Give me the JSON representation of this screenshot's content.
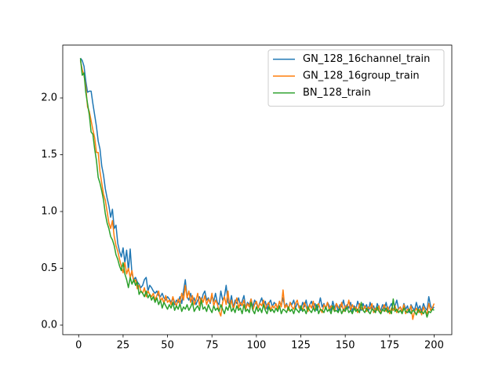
{
  "chart_data": {
    "type": "line",
    "x": [
      1,
      2,
      3,
      4,
      5,
      6,
      7,
      8,
      9,
      10,
      11,
      12,
      13,
      14,
      15,
      16,
      17,
      18,
      19,
      20,
      21,
      22,
      23,
      24,
      25,
      26,
      27,
      28,
      29,
      30,
      31,
      32,
      33,
      34,
      35,
      36,
      37,
      38,
      39,
      40,
      41,
      42,
      43,
      44,
      45,
      46,
      47,
      48,
      49,
      50,
      51,
      52,
      53,
      54,
      55,
      56,
      57,
      58,
      59,
      60,
      61,
      62,
      63,
      64,
      65,
      66,
      67,
      68,
      69,
      70,
      71,
      72,
      73,
      74,
      75,
      76,
      77,
      78,
      79,
      80,
      81,
      82,
      83,
      84,
      85,
      86,
      87,
      88,
      89,
      90,
      91,
      92,
      93,
      94,
      95,
      96,
      97,
      98,
      99,
      100,
      101,
      102,
      103,
      104,
      105,
      106,
      107,
      108,
      109,
      110,
      111,
      112,
      113,
      114,
      115,
      116,
      117,
      118,
      119,
      120,
      121,
      122,
      123,
      124,
      125,
      126,
      127,
      128,
      129,
      130,
      131,
      132,
      133,
      134,
      135,
      136,
      137,
      138,
      139,
      140,
      141,
      142,
      143,
      144,
      145,
      146,
      147,
      148,
      149,
      150,
      151,
      152,
      153,
      154,
      155,
      156,
      157,
      158,
      159,
      160,
      161,
      162,
      163,
      164,
      165,
      166,
      167,
      168,
      169,
      170,
      171,
      172,
      173,
      174,
      175,
      176,
      177,
      178,
      179,
      180,
      181,
      182,
      183,
      184,
      185,
      186,
      187,
      188,
      189,
      190,
      191,
      192,
      193,
      194,
      195,
      196,
      197,
      198,
      199,
      200
    ],
    "series": [
      {
        "name": "GN_128_16channel_train",
        "color": "#1f77b4",
        "values": [
          2.35,
          2.33,
          2.28,
          2.15,
          2.05,
          2.06,
          2.06,
          1.95,
          1.85,
          1.75,
          1.62,
          1.55,
          1.4,
          1.32,
          1.2,
          1.12,
          1.05,
          0.95,
          1.02,
          0.85,
          0.88,
          0.72,
          0.65,
          0.6,
          0.68,
          0.55,
          0.66,
          0.48,
          0.67,
          0.45,
          0.4,
          0.42,
          0.38,
          0.36,
          0.33,
          0.35,
          0.4,
          0.42,
          0.3,
          0.35,
          0.33,
          0.3,
          0.28,
          0.3,
          0.26,
          0.25,
          0.28,
          0.24,
          0.22,
          0.25,
          0.23,
          0.2,
          0.24,
          0.18,
          0.22,
          0.2,
          0.25,
          0.19,
          0.3,
          0.4,
          0.25,
          0.22,
          0.28,
          0.2,
          0.24,
          0.18,
          0.22,
          0.25,
          0.2,
          0.27,
          0.3,
          0.22,
          0.24,
          0.19,
          0.26,
          0.21,
          0.28,
          0.2,
          0.18,
          0.3,
          0.22,
          0.25,
          0.35,
          0.2,
          0.18,
          0.26,
          0.15,
          0.22,
          0.19,
          0.24,
          0.17,
          0.21,
          0.26,
          0.15,
          0.2,
          0.18,
          0.23,
          0.16,
          0.22,
          0.19,
          0.15,
          0.2,
          0.24,
          0.17,
          0.21,
          0.14,
          0.19,
          0.22,
          0.16,
          0.2,
          0.18,
          0.15,
          0.21,
          0.17,
          0.24,
          0.16,
          0.19,
          0.14,
          0.2,
          0.18,
          0.22,
          0.15,
          0.19,
          0.17,
          0.13,
          0.2,
          0.16,
          0.22,
          0.14,
          0.18,
          0.21,
          0.15,
          0.19,
          0.13,
          0.17,
          0.24,
          0.16,
          0.19,
          0.14,
          0.2,
          0.17,
          0.13,
          0.21,
          0.15,
          0.19,
          0.12,
          0.18,
          0.16,
          0.22,
          0.14,
          0.18,
          0.15,
          0.2,
          0.12,
          0.17,
          0.14,
          0.21,
          0.16,
          0.13,
          0.19,
          0.15,
          0.18,
          0.12,
          0.2,
          0.14,
          0.17,
          0.11,
          0.19,
          0.15,
          0.13,
          0.18,
          0.14,
          0.2,
          0.12,
          0.16,
          0.19,
          0.13,
          0.17,
          0.22,
          0.14,
          0.16,
          0.12,
          0.19,
          0.14,
          0.17,
          0.11,
          0.18,
          0.15,
          0.13,
          0.2,
          0.14,
          0.17,
          0.12,
          0.19,
          0.15,
          0.13,
          0.25,
          0.17,
          0.14,
          0.16
        ]
      },
      {
        "name": "GN_128_16group_train",
        "color": "#ff7f0e",
        "values": [
          2.33,
          2.25,
          2.2,
          2.1,
          1.92,
          1.88,
          1.8,
          1.72,
          1.65,
          1.52,
          1.52,
          1.35,
          1.25,
          1.15,
          1.1,
          1.0,
          0.9,
          0.85,
          0.92,
          0.78,
          0.7,
          0.65,
          0.58,
          0.52,
          0.46,
          0.55,
          0.45,
          0.5,
          0.42,
          0.48,
          0.38,
          0.4,
          0.32,
          0.35,
          0.3,
          0.28,
          0.33,
          0.25,
          0.3,
          0.27,
          0.25,
          0.28,
          0.22,
          0.26,
          0.3,
          0.21,
          0.24,
          0.19,
          0.26,
          0.2,
          0.22,
          0.18,
          0.25,
          0.2,
          0.17,
          0.23,
          0.19,
          0.28,
          0.22,
          0.35,
          0.24,
          0.3,
          0.2,
          0.26,
          0.18,
          0.22,
          0.28,
          0.17,
          0.24,
          0.2,
          0.26,
          0.18,
          0.23,
          0.2,
          0.28,
          0.17,
          0.22,
          0.19,
          0.12,
          0.08,
          0.2,
          0.25,
          0.18,
          0.3,
          0.16,
          0.22,
          0.14,
          0.19,
          0.24,
          0.15,
          0.2,
          0.17,
          0.22,
          0.14,
          0.19,
          0.16,
          0.23,
          0.13,
          0.18,
          0.21,
          0.15,
          0.19,
          0.17,
          0.22,
          0.14,
          0.18,
          0.2,
          0.13,
          0.17,
          0.15,
          0.19,
          0.14,
          0.21,
          0.16,
          0.31,
          0.15,
          0.18,
          0.13,
          0.2,
          0.16,
          0.14,
          0.19,
          0.22,
          0.15,
          0.17,
          0.13,
          0.2,
          0.16,
          0.12,
          0.18,
          0.15,
          0.21,
          0.13,
          0.17,
          0.19,
          0.14,
          0.11,
          0.18,
          0.15,
          0.2,
          0.13,
          0.17,
          0.15,
          0.12,
          0.19,
          0.16,
          0.14,
          0.2,
          0.12,
          0.17,
          0.15,
          0.22,
          0.13,
          0.18,
          0.14,
          0.16,
          0.11,
          0.19,
          0.15,
          0.13,
          0.17,
          0.12,
          0.16,
          0.14,
          0.19,
          0.11,
          0.15,
          0.13,
          0.17,
          0.1,
          0.14,
          0.18,
          0.12,
          0.16,
          0.1,
          0.15,
          0.13,
          0.17,
          0.11,
          0.14,
          0.16,
          0.12,
          0.18,
          0.1,
          0.14,
          0.13,
          0.17,
          0.05,
          0.12,
          0.15,
          0.11,
          0.14,
          0.09,
          0.16,
          0.12,
          0.1,
          0.19,
          0.13,
          0.15,
          0.19
        ]
      },
      {
        "name": "BN_128_train",
        "color": "#2ca02c",
        "values": [
          2.35,
          2.2,
          2.22,
          2.05,
          1.95,
          1.85,
          1.7,
          1.68,
          1.55,
          1.45,
          1.3,
          1.25,
          1.18,
          1.1,
          0.98,
          0.9,
          0.85,
          0.78,
          0.75,
          0.7,
          0.62,
          0.58,
          0.52,
          0.48,
          0.55,
          0.45,
          0.4,
          0.33,
          0.42,
          0.36,
          0.4,
          0.35,
          0.38,
          0.27,
          0.3,
          0.28,
          0.25,
          0.3,
          0.24,
          0.27,
          0.22,
          0.25,
          0.2,
          0.24,
          0.18,
          0.22,
          0.15,
          0.2,
          0.17,
          0.14,
          0.18,
          0.15,
          0.2,
          0.13,
          0.17,
          0.14,
          0.19,
          0.12,
          0.16,
          0.14,
          0.18,
          0.13,
          0.16,
          0.2,
          0.12,
          0.15,
          0.17,
          0.13,
          0.22,
          0.14,
          0.16,
          0.12,
          0.18,
          0.14,
          0.11,
          0.17,
          0.13,
          0.15,
          0.12,
          0.18,
          0.14,
          0.1,
          0.16,
          0.13,
          0.19,
          0.12,
          0.15,
          0.11,
          0.17,
          0.13,
          0.15,
          0.1,
          0.18,
          0.12,
          0.14,
          0.11,
          0.2,
          0.13,
          0.1,
          0.16,
          0.12,
          0.15,
          0.11,
          0.18,
          0.13,
          0.1,
          0.16,
          0.12,
          0.14,
          0.11,
          0.15,
          0.12,
          0.17,
          0.1,
          0.14,
          0.13,
          0.11,
          0.16,
          0.12,
          0.14,
          0.1,
          0.15,
          0.13,
          0.11,
          0.17,
          0.12,
          0.14,
          0.1,
          0.16,
          0.13,
          0.11,
          0.15,
          0.12,
          0.18,
          0.1,
          0.14,
          0.13,
          0.11,
          0.16,
          0.12,
          0.14,
          0.1,
          0.17,
          0.12,
          0.13,
          0.11,
          0.15,
          0.1,
          0.14,
          0.12,
          0.16,
          0.11,
          0.13,
          0.1,
          0.15,
          0.12,
          0.14,
          0.11,
          0.2,
          0.13,
          0.11,
          0.15,
          0.12,
          0.1,
          0.14,
          0.13,
          0.11,
          0.16,
          0.12,
          0.1,
          0.14,
          0.12,
          0.15,
          0.11,
          0.13,
          0.1,
          0.23,
          0.12,
          0.14,
          0.11,
          0.13,
          0.1,
          0.15,
          0.12,
          0.11,
          0.14,
          0.1,
          0.13,
          0.12,
          0.09,
          0.14,
          0.11,
          0.12,
          0.1,
          0.13,
          0.07,
          0.12,
          0.11,
          0.14,
          0.13
        ]
      }
    ],
    "xlim": [
      -8.95,
      209.95
    ],
    "xticks": [
      0,
      25,
      50,
      75,
      100,
      125,
      150,
      175,
      200
    ],
    "ylim": [
      -0.084,
      2.465
    ],
    "yticks": [
      {
        "value": 0,
        "label": "0.0"
      },
      {
        "value": 0.5,
        "label": "0.5"
      },
      {
        "value": 1,
        "label": "1.0"
      },
      {
        "value": 1.5,
        "label": "1.5"
      },
      {
        "value": 2,
        "label": "2.0"
      }
    ],
    "legend": "upper right",
    "grid": false
  }
}
